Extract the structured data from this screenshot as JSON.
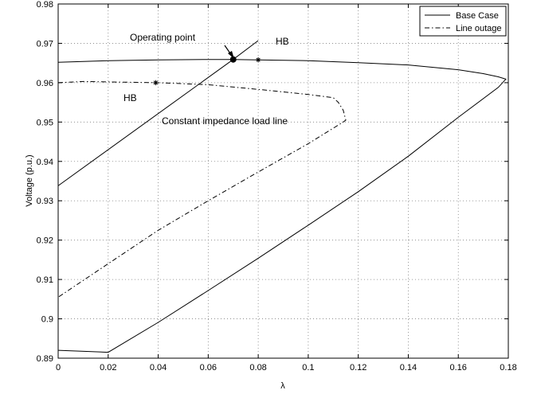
{
  "chart_data": {
    "type": "line",
    "xlabel": "λ",
    "ylabel": "Voltage (p.u.)",
    "xlim": [
      0,
      0.18
    ],
    "ylim": [
      0.89,
      0.98
    ],
    "xticks": [
      "0",
      "0.02",
      "0.04",
      "0.06",
      "0.08",
      "0.1",
      "0.12",
      "0.14",
      "0.16",
      "0.18"
    ],
    "yticks": [
      "0.89",
      "0.9",
      "0.91",
      "0.92",
      "0.93",
      "0.94",
      "0.95",
      "0.96",
      "0.97",
      "0.98"
    ],
    "grid": true,
    "legend_position": "top-right",
    "series": [
      {
        "name": "Base Case",
        "style": "solid",
        "x": [
          0,
          0.02,
          0.04,
          0.06,
          0.07,
          0.08,
          0.1,
          0.12,
          0.14,
          0.16,
          0.17,
          0.176,
          0.179,
          0.176,
          0.16,
          0.14,
          0.12,
          0.1,
          0.08,
          0.06,
          0.04,
          0.02,
          0
        ],
        "y": [
          0.9652,
          0.9656,
          0.9658,
          0.9659,
          0.9659,
          0.9658,
          0.9656,
          0.9651,
          0.9645,
          0.9633,
          0.9623,
          0.9615,
          0.9609,
          0.9588,
          0.9512,
          0.9413,
          0.9323,
          0.9238,
          0.9154,
          0.9072,
          0.8991,
          0.8915,
          0.892
        ]
      },
      {
        "name": "Line outage",
        "style": "dashdot",
        "x": [
          0,
          0.01,
          0.02,
          0.04,
          0.06,
          0.08,
          0.1,
          0.11,
          0.112,
          0.114,
          0.115,
          0.114,
          0.1,
          0.08,
          0.06,
          0.04,
          0.02,
          0
        ],
        "y": [
          0.96,
          0.9603,
          0.9602,
          0.96,
          0.9595,
          0.9583,
          0.957,
          0.9562,
          0.955,
          0.953,
          0.9505,
          0.95,
          0.9445,
          0.9373,
          0.93,
          0.9225,
          0.914,
          0.9055
        ]
      },
      {
        "name": "Constant impedance load line",
        "style": "solid",
        "x": [
          0,
          0.07,
          0.08
        ],
        "y": [
          0.9338,
          0.9659,
          0.9707
        ]
      }
    ],
    "markers": [
      {
        "label": "Operating point",
        "type": "dot",
        "x": 0.07,
        "y": 0.9659
      },
      {
        "label": "HB",
        "type": "star",
        "x": 0.08,
        "y": 0.9658
      },
      {
        "label": "HB",
        "type": "star",
        "x": 0.039,
        "y": 0.96
      }
    ],
    "annotations": {
      "operating_point": "Operating point",
      "hb_base": "HB",
      "hb_outage": "HB",
      "load_line": "Constant impedance load line"
    },
    "legend": {
      "base_case": "Base Case",
      "line_outage": "Line outage"
    }
  }
}
